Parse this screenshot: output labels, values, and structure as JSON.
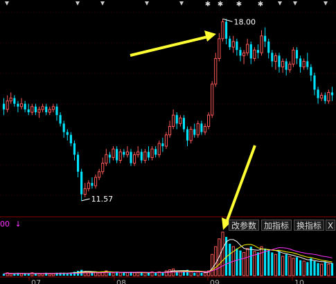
{
  "toolbar": {
    "volume_value": "00",
    "down_arrow": "↓",
    "modify_params": "改参数",
    "add_indicator": "加指标",
    "switch_indicator": "换指标",
    "close": "X"
  },
  "x_axis_labels": [
    "07",
    "08",
    "09",
    "10"
  ],
  "colors": {
    "up": "#ff5a5a",
    "down": "#00e5ff",
    "ma_white": "#ffffff",
    "ma_yellow": "#ffff00",
    "ma_magenta": "#ff33ff",
    "arrow": "#ffff33",
    "grid": "#8b0000"
  },
  "chart_data": {
    "type": "candlestick",
    "annotations": [
      {
        "label": "18.00",
        "kind": "high"
      },
      {
        "label": "11.57",
        "kind": "low"
      }
    ],
    "ylim": [
      11.2,
      18.3
    ],
    "candles": [
      [
        15.0,
        14.8,
        15.2,
        14.6
      ],
      [
        14.8,
        15.1,
        15.3,
        14.7
      ],
      [
        15.1,
        15.2,
        15.4,
        15.0
      ],
      [
        15.2,
        15.0,
        15.3,
        14.9
      ],
      [
        15.0,
        14.9,
        15.1,
        14.7
      ],
      [
        14.9,
        15.0,
        15.2,
        14.8
      ],
      [
        15.0,
        14.8,
        15.1,
        14.7
      ],
      [
        14.8,
        14.7,
        15.0,
        14.6
      ],
      [
        14.7,
        14.9,
        15.0,
        14.6
      ],
      [
        14.9,
        14.7,
        15.0,
        14.6
      ],
      [
        14.7,
        14.8,
        14.9,
        14.5
      ],
      [
        14.8,
        14.9,
        15.0,
        14.7
      ],
      [
        14.9,
        14.7,
        15.0,
        14.6
      ],
      [
        14.7,
        14.8,
        14.9,
        14.6
      ],
      [
        14.8,
        14.9,
        15.0,
        14.7
      ],
      [
        14.9,
        14.6,
        15.0,
        14.4
      ],
      [
        14.6,
        14.3,
        14.7,
        14.2
      ],
      [
        14.3,
        14.0,
        14.4,
        13.8
      ],
      [
        14.0,
        13.9,
        14.1,
        13.7
      ],
      [
        13.9,
        13.6,
        14.0,
        13.5
      ],
      [
        13.6,
        13.2,
        13.7,
        13.0
      ],
      [
        13.2,
        12.6,
        13.3,
        12.4
      ],
      [
        12.6,
        11.8,
        12.7,
        11.57
      ],
      [
        11.8,
        12.0,
        12.2,
        11.7
      ],
      [
        12.0,
        12.2,
        12.3,
        11.9
      ],
      [
        12.2,
        12.1,
        12.4,
        12.0
      ],
      [
        12.1,
        12.4,
        12.5,
        12.0
      ],
      [
        12.4,
        12.6,
        12.7,
        12.3
      ],
      [
        12.6,
        12.9,
        13.1,
        12.5
      ],
      [
        12.9,
        13.2,
        13.4,
        12.8
      ],
      [
        13.2,
        13.1,
        13.3,
        12.9
      ],
      [
        13.1,
        13.4,
        13.5,
        13.0
      ],
      [
        13.4,
        13.0,
        13.5,
        12.9
      ],
      [
        13.0,
        13.3,
        13.4,
        12.9
      ],
      [
        13.3,
        13.2,
        13.4,
        13.1
      ],
      [
        13.2,
        13.3,
        13.5,
        13.1
      ],
      [
        13.3,
        12.9,
        13.4,
        12.8
      ],
      [
        12.9,
        13.2,
        13.3,
        12.8
      ],
      [
        13.2,
        13.3,
        13.5,
        13.1
      ],
      [
        13.3,
        13.0,
        13.4,
        12.9
      ],
      [
        13.0,
        13.3,
        13.4,
        12.9
      ],
      [
        13.3,
        13.1,
        13.5,
        13.0
      ],
      [
        13.1,
        13.4,
        13.5,
        13.0
      ],
      [
        13.4,
        13.2,
        13.5,
        13.1
      ],
      [
        13.2,
        13.6,
        13.7,
        13.1
      ],
      [
        13.6,
        13.5,
        13.8,
        13.3
      ],
      [
        13.5,
        13.9,
        14.0,
        13.4
      ],
      [
        13.9,
        14.2,
        14.4,
        13.8
      ],
      [
        14.2,
        14.6,
        14.8,
        14.1
      ],
      [
        14.6,
        14.3,
        14.7,
        14.1
      ],
      [
        14.3,
        14.5,
        14.6,
        14.2
      ],
      [
        14.5,
        14.1,
        14.6,
        14.0
      ],
      [
        14.1,
        13.7,
        14.2,
        13.5
      ],
      [
        13.7,
        14.1,
        14.2,
        13.6
      ],
      [
        14.1,
        13.9,
        14.3,
        13.8
      ],
      [
        13.9,
        14.3,
        14.4,
        13.8
      ],
      [
        14.3,
        14.0,
        14.4,
        13.9
      ],
      [
        14.0,
        14.2,
        14.3,
        13.9
      ],
      [
        14.2,
        14.6,
        14.7,
        14.1
      ],
      [
        14.6,
        15.7,
        15.8,
        14.5
      ],
      [
        15.7,
        16.6,
        16.8,
        15.6
      ],
      [
        16.6,
        17.3,
        17.5,
        16.5
      ],
      [
        17.3,
        17.9,
        18.0,
        17.2
      ],
      [
        17.9,
        17.3,
        18.0,
        17.1
      ],
      [
        17.3,
        17.0,
        17.4,
        16.9
      ],
      [
        17.0,
        17.2,
        17.4,
        16.8
      ],
      [
        17.2,
        16.9,
        17.3,
        16.7
      ],
      [
        16.9,
        16.7,
        17.0,
        16.5
      ],
      [
        16.7,
        16.8,
        16.9,
        16.4
      ],
      [
        16.8,
        17.1,
        17.3,
        16.7
      ],
      [
        17.1,
        16.6,
        17.2,
        16.4
      ],
      [
        16.6,
        16.9,
        17.0,
        16.5
      ],
      [
        16.9,
        16.8,
        17.1,
        16.6
      ],
      [
        16.8,
        17.4,
        17.6,
        16.7
      ],
      [
        17.4,
        17.2,
        17.7,
        17.0
      ],
      [
        17.2,
        16.8,
        17.3,
        16.6
      ],
      [
        16.8,
        16.5,
        16.9,
        16.3
      ],
      [
        16.5,
        16.7,
        16.8,
        16.2
      ],
      [
        16.7,
        16.3,
        16.8,
        16.1
      ],
      [
        16.3,
        16.5,
        16.6,
        16.1
      ],
      [
        16.5,
        16.2,
        16.6,
        16.0
      ],
      [
        16.2,
        16.4,
        16.5,
        16.1
      ],
      [
        16.4,
        16.9,
        17.0,
        16.3
      ],
      [
        16.9,
        16.6,
        17.0,
        16.4
      ],
      [
        16.6,
        16.3,
        16.7,
        16.1
      ],
      [
        16.3,
        16.5,
        16.6,
        16.2
      ],
      [
        16.5,
        16.3,
        16.8,
        16.2
      ],
      [
        16.3,
        16.0,
        16.4,
        15.8
      ],
      [
        16.0,
        15.5,
        16.1,
        15.3
      ],
      [
        15.5,
        15.2,
        15.6,
        15.0
      ],
      [
        15.2,
        15.3,
        15.4,
        15.1
      ],
      [
        15.3,
        15.1,
        15.4,
        15.0
      ],
      [
        15.1,
        15.4,
        15.5,
        15.0
      ],
      [
        15.4,
        15.3,
        15.6,
        15.1
      ]
    ],
    "volume": [
      2,
      3,
      2,
      2,
      3,
      2,
      2,
      2,
      3,
      2,
      2,
      2,
      3,
      2,
      2,
      3,
      3,
      3,
      2,
      3,
      4,
      5,
      6,
      4,
      3,
      3,
      4,
      3,
      4,
      5,
      3,
      3,
      4,
      3,
      3,
      3,
      4,
      3,
      3,
      3,
      3,
      3,
      4,
      3,
      4,
      3,
      5,
      6,
      7,
      4,
      4,
      5,
      6,
      4,
      3,
      4,
      3,
      3,
      5,
      22,
      30,
      38,
      45,
      40,
      33,
      30,
      28,
      26,
      24,
      28,
      30,
      25,
      24,
      30,
      28,
      26,
      24,
      22,
      25,
      20,
      22,
      20,
      18,
      19,
      16,
      15,
      14,
      18,
      15,
      13,
      12,
      14,
      12,
      13
    ]
  }
}
